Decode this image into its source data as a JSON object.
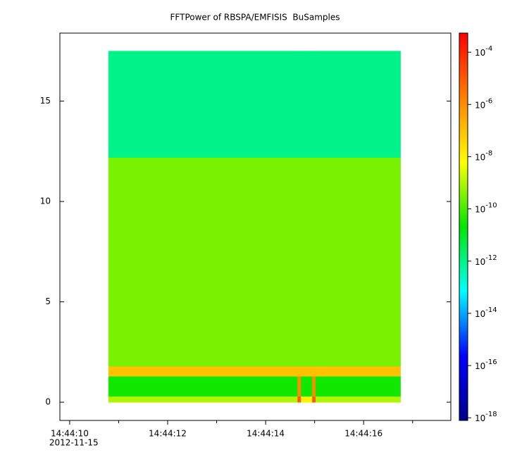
{
  "chart_data": {
    "type": "spectrogram",
    "title": "FFTPower of RBSPA/EMFISIS  BuSamples",
    "x_edges": [
      10.79,
      14.65,
      14.72,
      14.95,
      15.02,
      16.75
    ],
    "y_edges": [
      0,
      0.3,
      1.3,
      1.8,
      12.2,
      17.5
    ],
    "z": [
      [
        1e-09,
        1e-05,
        1e-08,
        1e-05,
        1e-09
      ],
      [
        3e-11,
        1e-06,
        3e-11,
        1e-06,
        3e-11
      ],
      [
        1e-07,
        1e-07,
        1e-07,
        1e-07,
        1e-07
      ],
      [
        3e-10,
        3e-10,
        3e-10,
        3e-10,
        3e-10
      ],
      [
        1e-12,
        1e-12,
        1e-12,
        1e-12,
        1e-12
      ]
    ],
    "xlim": [
      9.8,
      17.78
    ],
    "ylim": [
      -0.91,
      18.39
    ],
    "xticks": [
      {
        "value": 10,
        "label": "14:44:10"
      },
      {
        "value": 12,
        "label": "14:44:12"
      },
      {
        "value": 14,
        "label": "14:44:14"
      },
      {
        "value": 16,
        "label": "14:44:16"
      }
    ],
    "x_minor_ticks": [
      11,
      13,
      15,
      17
    ],
    "x_date_label": "2012-11-15",
    "yticks": [
      0,
      5,
      10,
      15
    ],
    "zlim": [
      7.9e-19,
      0.00054
    ],
    "z_log_scale": true,
    "zticks": [
      {
        "value": 0.0001,
        "label": "10",
        "exponent": "-4"
      },
      {
        "value": 1e-06,
        "label": "10",
        "exponent": "-6"
      },
      {
        "value": 1e-08,
        "label": "10",
        "exponent": "-8"
      },
      {
        "value": 1e-10,
        "label": "10",
        "exponent": "-10"
      },
      {
        "value": 1e-12,
        "label": "10",
        "exponent": "-12"
      },
      {
        "value": 1e-14,
        "label": "10",
        "exponent": "-14"
      },
      {
        "value": 1e-16,
        "label": "10",
        "exponent": "-16"
      },
      {
        "value": 1e-18,
        "label": "10",
        "exponent": "-18"
      }
    ],
    "colormap": [
      "#00008b",
      "#0000ff",
      "#00ffff",
      "#00e600",
      "#ffff00",
      "#ff8000",
      "#ff0000"
    ]
  }
}
